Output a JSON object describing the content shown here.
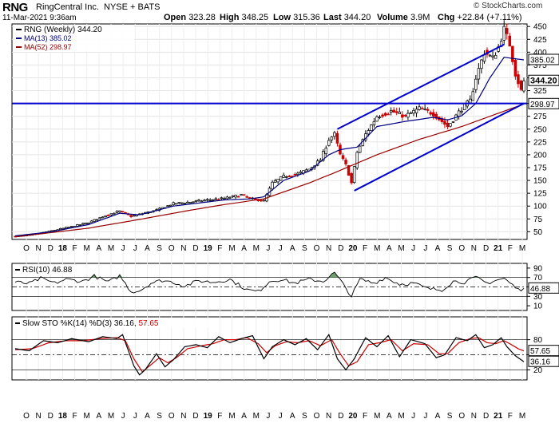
{
  "header": {
    "symbol": "RNG",
    "company": "RingCentral Inc.",
    "exchange": "NYSE + BATS",
    "date": "11-Mar-2021 9:36am",
    "copyright": "© StockCharts.com",
    "open_label": "Open",
    "open": "323.28",
    "high_label": "High",
    "high": "348.25",
    "low_label": "Low",
    "low": "315.36",
    "last_label": "Last",
    "last": "344.20",
    "volume_label": "Volume",
    "volume": "3.9M",
    "chg_label": "Chg",
    "chg": "+22.84 (+7.11%)"
  },
  "colors": {
    "up_candle": "#ffffff",
    "down_candle": "#cc0000",
    "ma13": "#000080",
    "ma52": "#990000",
    "trendline": "#0000cc",
    "rsi_fill": "#6e9e6e",
    "stoch_k": "#000000",
    "stoch_d": "#cc0000"
  },
  "chart_data": [
    {
      "type": "candlestick",
      "legend": [
        {
          "name": "RNG (Weekly)",
          "value": "344.20"
        },
        {
          "name": "MA(13)",
          "value": "385.02"
        },
        {
          "name": "MA(52)",
          "value": "298.97"
        }
      ],
      "y_ticks": [
        50,
        75,
        100,
        125,
        150,
        175,
        200,
        225,
        250,
        275,
        300,
        325,
        350,
        375,
        400,
        425,
        450
      ],
      "ylim": [
        35,
        455
      ],
      "x_tick_labels": [
        "O",
        "N",
        "D",
        "18",
        "F",
        "M",
        "A",
        "M",
        "J",
        "J",
        "A",
        "S",
        "O",
        "N",
        "D",
        "19",
        "F",
        "M",
        "A",
        "M",
        "J",
        "J",
        "A",
        "S",
        "O",
        "N",
        "D",
        "20",
        "F",
        "M",
        "A",
        "M",
        "J",
        "J",
        "A",
        "S",
        "O",
        "N",
        "D",
        "21",
        "F",
        "M"
      ],
      "x_bold_labels": [
        "18",
        "19",
        "20",
        "21"
      ],
      "price_keypoints": [
        [
          0,
          41
        ],
        [
          6,
          44
        ],
        [
          13,
          52
        ],
        [
          20,
          60
        ],
        [
          26,
          68
        ],
        [
          32,
          82
        ],
        [
          37,
          90
        ],
        [
          41,
          80
        ],
        [
          44,
          84
        ],
        [
          50,
          92
        ],
        [
          56,
          105
        ],
        [
          62,
          108
        ],
        [
          68,
          112
        ],
        [
          74,
          115
        ],
        [
          80,
          122
        ],
        [
          83,
          115
        ],
        [
          88,
          110
        ],
        [
          91,
          145
        ],
        [
          95,
          158
        ],
        [
          100,
          163
        ],
        [
          104,
          172
        ],
        [
          108,
          190
        ],
        [
          111,
          230
        ],
        [
          113,
          240
        ],
        [
          115,
          200
        ],
        [
          117,
          180
        ],
        [
          119,
          145
        ],
        [
          121,
          205
        ],
        [
          124,
          240
        ],
        [
          128,
          275
        ],
        [
          133,
          285
        ],
        [
          138,
          275
        ],
        [
          143,
          290
        ],
        [
          148,
          280
        ],
        [
          153,
          255
        ],
        [
          158,
          290
        ],
        [
          161,
          305
        ],
        [
          163,
          350
        ],
        [
          166,
          400
        ],
        [
          169,
          388
        ],
        [
          171,
          410
        ],
        [
          173,
          445
        ],
        [
          175,
          415
        ],
        [
          177,
          358
        ],
        [
          179,
          325
        ],
        [
          180,
          344.2
        ]
      ],
      "ma13_keypoints": [
        [
          0,
          42
        ],
        [
          13,
          50
        ],
        [
          26,
          64
        ],
        [
          37,
          86
        ],
        [
          44,
          83
        ],
        [
          56,
          100
        ],
        [
          74,
          112
        ],
        [
          83,
          114
        ],
        [
          88,
          118
        ],
        [
          95,
          150
        ],
        [
          104,
          168
        ],
        [
          111,
          200
        ],
        [
          115,
          210
        ],
        [
          121,
          215
        ],
        [
          128,
          255
        ],
        [
          138,
          265
        ],
        [
          148,
          273
        ],
        [
          153,
          268
        ],
        [
          158,
          276
        ],
        [
          163,
          300
        ],
        [
          168,
          350
        ],
        [
          173,
          390
        ],
        [
          180,
          385.02
        ]
      ],
      "ma52_keypoints": [
        [
          0,
          40
        ],
        [
          26,
          57
        ],
        [
          44,
          74
        ],
        [
          62,
          92
        ],
        [
          74,
          103
        ],
        [
          88,
          114
        ],
        [
          104,
          145
        ],
        [
          113,
          165
        ],
        [
          128,
          200
        ],
        [
          143,
          230
        ],
        [
          158,
          255
        ],
        [
          168,
          275
        ],
        [
          180,
          298.97
        ]
      ],
      "horizontal_line": 300,
      "channel_upper": [
        [
          114,
          250
        ],
        [
          173,
          415
        ]
      ],
      "channel_lower": [
        [
          120,
          130
        ],
        [
          180,
          300
        ]
      ]
    },
    {
      "type": "line",
      "title": "RSI(10)",
      "value": "46.88",
      "y_ticks": [
        10,
        30,
        50,
        70,
        90
      ],
      "ylim": [
        0,
        100
      ],
      "reference_line": 50,
      "keypoints": [
        [
          0,
          60
        ],
        [
          5,
          57
        ],
        [
          9,
          68
        ],
        [
          14,
          58
        ],
        [
          18,
          66
        ],
        [
          24,
          62
        ],
        [
          28,
          73
        ],
        [
          33,
          60
        ],
        [
          37,
          74
        ],
        [
          41,
          40
        ],
        [
          44,
          42
        ],
        [
          48,
          58
        ],
        [
          52,
          64
        ],
        [
          56,
          60
        ],
        [
          60,
          52
        ],
        [
          65,
          63
        ],
        [
          70,
          60
        ],
        [
          76,
          66
        ],
        [
          82,
          44
        ],
        [
          86,
          40
        ],
        [
          90,
          62
        ],
        [
          94,
          66
        ],
        [
          99,
          58
        ],
        [
          104,
          66
        ],
        [
          109,
          62
        ],
        [
          113,
          80
        ],
        [
          116,
          56
        ],
        [
          119,
          30
        ],
        [
          122,
          66
        ],
        [
          127,
          58
        ],
        [
          131,
          70
        ],
        [
          136,
          56
        ],
        [
          141,
          58
        ],
        [
          146,
          46
        ],
        [
          151,
          44
        ],
        [
          155,
          62
        ],
        [
          159,
          60
        ],
        [
          163,
          70
        ],
        [
          167,
          58
        ],
        [
          170,
          64
        ],
        [
          173,
          68
        ],
        [
          176,
          54
        ],
        [
          178,
          44
        ],
        [
          180,
          46.88
        ]
      ]
    },
    {
      "type": "line",
      "title": "Slow STO %K(14) %D(3)",
      "k_value": "36.16",
      "d_value": "57.65",
      "y_ticks": [
        20,
        50,
        80
      ],
      "ylim": [
        0,
        100
      ],
      "reference_lines": [
        20,
        80
      ],
      "k_keypoints": [
        [
          0,
          62
        ],
        [
          5,
          58
        ],
        [
          10,
          78
        ],
        [
          15,
          74
        ],
        [
          20,
          82
        ],
        [
          26,
          76
        ],
        [
          31,
          86
        ],
        [
          36,
          82
        ],
        [
          38,
          90
        ],
        [
          42,
          28
        ],
        [
          44,
          10
        ],
        [
          46,
          20
        ],
        [
          50,
          52
        ],
        [
          53,
          26
        ],
        [
          56,
          40
        ],
        [
          60,
          66
        ],
        [
          64,
          70
        ],
        [
          68,
          64
        ],
        [
          72,
          86
        ],
        [
          76,
          74
        ],
        [
          80,
          82
        ],
        [
          84,
          88
        ],
        [
          88,
          42
        ],
        [
          91,
          66
        ],
        [
          95,
          80
        ],
        [
          99,
          70
        ],
        [
          103,
          82
        ],
        [
          107,
          60
        ],
        [
          111,
          90
        ],
        [
          114,
          42
        ],
        [
          117,
          20
        ],
        [
          120,
          42
        ],
        [
          124,
          84
        ],
        [
          128,
          66
        ],
        [
          132,
          88
        ],
        [
          136,
          46
        ],
        [
          140,
          80
        ],
        [
          145,
          72
        ],
        [
          149,
          44
        ],
        [
          152,
          50
        ],
        [
          156,
          84
        ],
        [
          160,
          78
        ],
        [
          163,
          90
        ],
        [
          166,
          64
        ],
        [
          169,
          70
        ],
        [
          172,
          84
        ],
        [
          174,
          66
        ],
        [
          177,
          48
        ],
        [
          180,
          36.16
        ]
      ],
      "d_keypoints": [
        [
          0,
          60
        ],
        [
          6,
          62
        ],
        [
          12,
          74
        ],
        [
          18,
          78
        ],
        [
          24,
          78
        ],
        [
          30,
          82
        ],
        [
          36,
          84
        ],
        [
          39,
          78
        ],
        [
          42,
          42
        ],
        [
          45,
          16
        ],
        [
          48,
          30
        ],
        [
          51,
          44
        ],
        [
          54,
          34
        ],
        [
          57,
          44
        ],
        [
          61,
          62
        ],
        [
          66,
          68
        ],
        [
          70,
          72
        ],
        [
          74,
          80
        ],
        [
          78,
          80
        ],
        [
          82,
          84
        ],
        [
          86,
          72
        ],
        [
          89,
          54
        ],
        [
          92,
          68
        ],
        [
          96,
          76
        ],
        [
          100,
          74
        ],
        [
          104,
          78
        ],
        [
          108,
          68
        ],
        [
          112,
          80
        ],
        [
          115,
          52
        ],
        [
          118,
          28
        ],
        [
          121,
          36
        ],
        [
          125,
          70
        ],
        [
          129,
          74
        ],
        [
          133,
          80
        ],
        [
          137,
          58
        ],
        [
          141,
          72
        ],
        [
          146,
          70
        ],
        [
          150,
          52
        ],
        [
          153,
          52
        ],
        [
          157,
          74
        ],
        [
          161,
          82
        ],
        [
          164,
          84
        ],
        [
          167,
          74
        ],
        [
          170,
          72
        ],
        [
          173,
          78
        ],
        [
          175,
          72
        ],
        [
          178,
          62
        ],
        [
          180,
          57.65
        ]
      ]
    }
  ]
}
